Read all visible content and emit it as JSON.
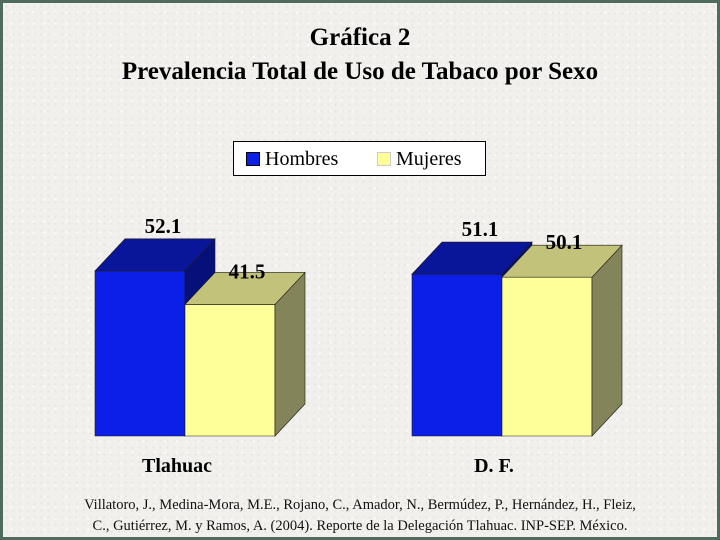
{
  "title": "Gráfica 2",
  "subtitle": "Prevalencia Total de Uso de Tabaco por Sexo",
  "source_line1": "Villatoro, J., Medina-Mora, M.E., Rojano, C., Amador, N., Bermúdez, P., Hernández, H., Fleiz,",
  "source_line2": "C., Gutiérrez, M. y Ramos, A. (2004). Reporte de la Delegación Tlahuac. INP-SEP. México.",
  "colors": {
    "hombres": "#0b1fe6",
    "mujeres": "#ffff99",
    "frame": "#4f6b5e"
  },
  "chart_data": {
    "type": "bar",
    "style": "3d-clustered",
    "categories": [
      "Tlahuac",
      "D. F."
    ],
    "series": [
      {
        "name": "Hombres",
        "values": [
          52.1,
          51.1
        ]
      },
      {
        "name": "Mujeres",
        "values": [
          41.5,
          50.1
        ]
      }
    ],
    "data_labels": [
      [
        "52.1",
        "41.5"
      ],
      [
        "51.1",
        "50.1"
      ]
    ],
    "legend_position": "top-center",
    "grid": false,
    "axes_visible": false
  }
}
